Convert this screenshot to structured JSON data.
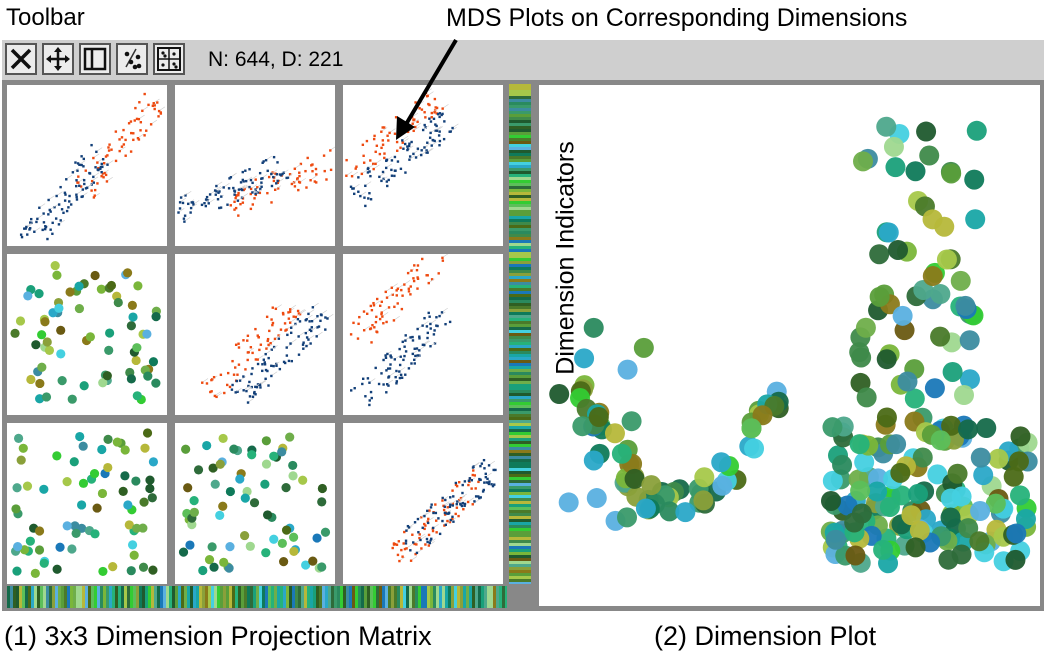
{
  "labels": {
    "toolbar_title": "Toolbar",
    "mds_annotation": "MDS Plots on Corresponding Dimensions",
    "caption_matrix": "(1) 3x3 Dimension Projection Matrix",
    "caption_dimplot": "(2) Dimension Plot",
    "dimension_indicators": "Dimension Indicators"
  },
  "toolbar": {
    "stats": "N: 644, D: 221",
    "buttons": [
      {
        "name": "select-tool-button",
        "icon": "x-cross-icon"
      },
      {
        "name": "pan-tool-button",
        "icon": "move-arrows-icon"
      },
      {
        "name": "split-view-button",
        "icon": "panel-split-icon"
      },
      {
        "name": "mds-projection-button",
        "icon": "scatter-icon"
      },
      {
        "name": "matrix-layout-button",
        "icon": "grid-icon"
      }
    ]
  },
  "colors": {
    "point_orange": "#ee4a10",
    "point_navy": "#123f78",
    "panel_gray": "#888888",
    "toolbar_gray": "#cfcfcf"
  },
  "matrix": {
    "rows": 3,
    "cols": 3,
    "cell_types": [
      [
        "mds",
        "mds",
        "mds"
      ],
      [
        "dimension",
        "mds",
        "mds"
      ],
      [
        "dimension",
        "dimension",
        "mds"
      ]
    ]
  }
}
